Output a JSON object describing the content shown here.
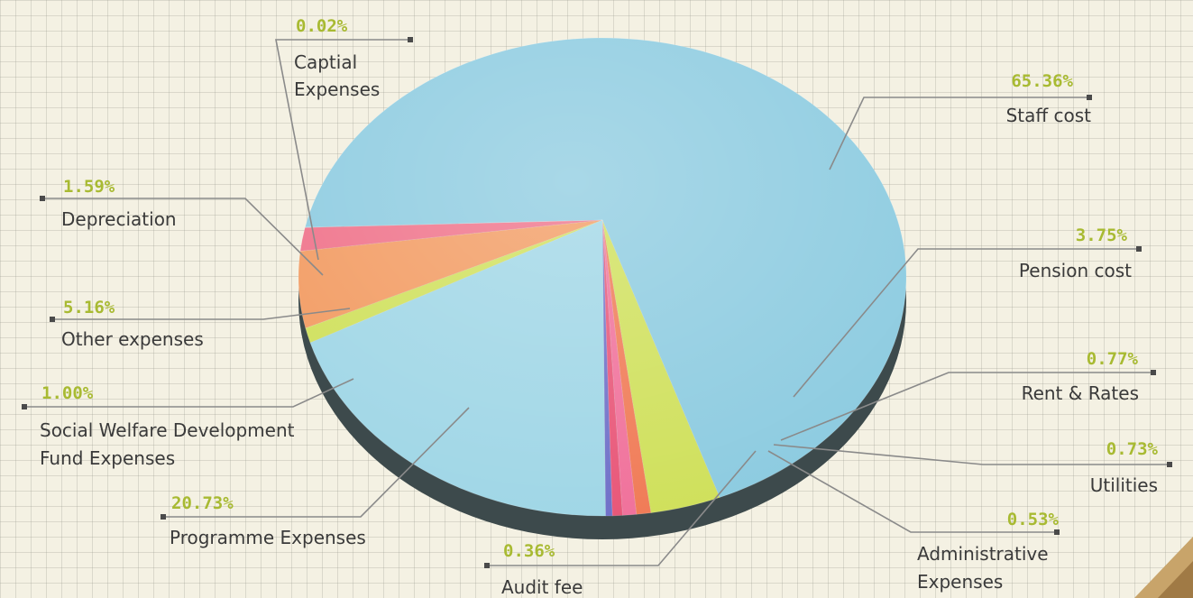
{
  "chart_data": {
    "type": "pie",
    "title": "",
    "unit": "%",
    "slices": [
      {
        "label": "Staff cost",
        "value": 65.36,
        "value_label": "65.36%",
        "color": "#8ccbe0"
      },
      {
        "label": "Pension cost",
        "value": 3.75,
        "value_label": "3.75%",
        "color": "#cfe05a"
      },
      {
        "label": "Rent & Rates",
        "value": 0.77,
        "value_label": "0.77%",
        "color": "#f07a55"
      },
      {
        "label": "Utilities",
        "value": 0.73,
        "value_label": "0.73%",
        "color": "#f0709a"
      },
      {
        "label": "Administrative Expenses",
        "value": 0.53,
        "value_label": "0.53%",
        "color": "#e85577"
      },
      {
        "label": "Audit fee",
        "value": 0.36,
        "value_label": "0.36%",
        "color": "#6f6fc8"
      },
      {
        "label": "Programme Expenses",
        "value": 20.73,
        "value_label": "20.73%",
        "color": "#9fd6e6"
      },
      {
        "label": "Social Welfare Development Fund Expenses",
        "value": 1.0,
        "value_label": "1.00%",
        "color": "#cfe05a"
      },
      {
        "label": "Other expenses",
        "value": 5.16,
        "value_label": "5.16%",
        "color": "#f29a60"
      },
      {
        "label": "Depreciation",
        "value": 1.59,
        "value_label": "1.59%",
        "color": "#ef7088"
      },
      {
        "label": "Captial Expenses",
        "value": 0.02,
        "value_label": "0.02%",
        "color": "#8ccbe0"
      }
    ]
  },
  "labels": {
    "staff": {
      "pct": "65.36%",
      "line1": "Staff cost"
    },
    "pension": {
      "pct": "3.75%",
      "line1": "Pension cost"
    },
    "rent": {
      "pct": "0.77%",
      "line1": "Rent & Rates"
    },
    "utilities": {
      "pct": "0.73%",
      "line1": "Utilities"
    },
    "admin": {
      "pct": "0.53%",
      "line1": "Administrative",
      "line2": "Expenses"
    },
    "audit": {
      "pct": "0.36%",
      "line1": "Audit fee"
    },
    "programme": {
      "pct": "20.73%",
      "line1": "Programme Expenses"
    },
    "swdf": {
      "pct": "1.00%",
      "line1": "Social Welfare Development",
      "line2": "Fund Expenses"
    },
    "other": {
      "pct": "5.16%",
      "line1": "Other expenses"
    },
    "depreciation": {
      "pct": "1.59%",
      "line1": "Depreciation"
    },
    "capital": {
      "pct": "0.02%",
      "line1": "Captial",
      "line2": "Expenses"
    }
  }
}
